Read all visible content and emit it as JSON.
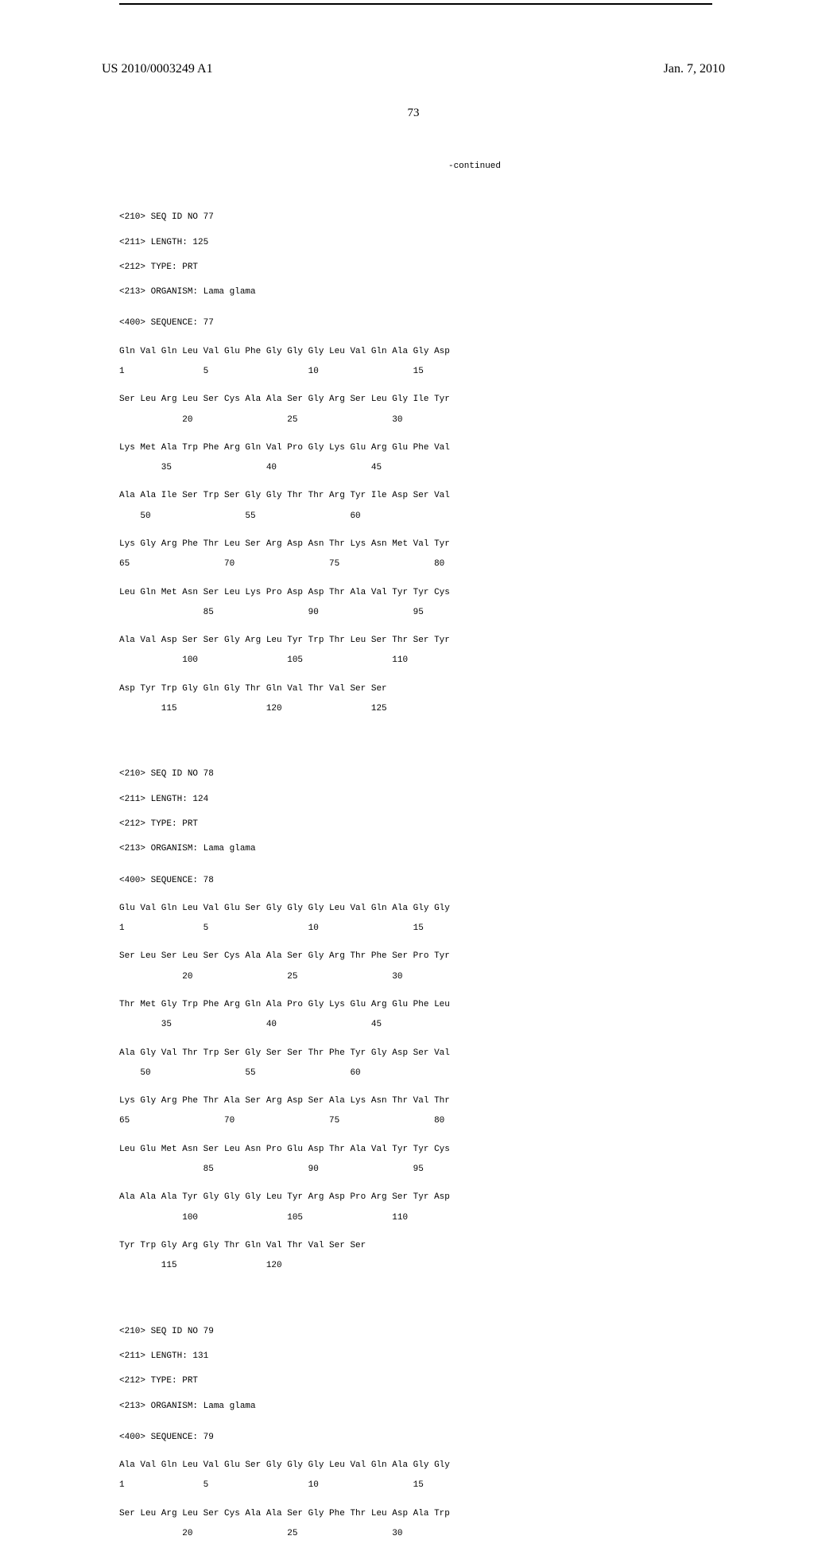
{
  "header": {
    "pub_number": "US 2010/0003249 A1",
    "pub_date": "Jan. 7, 2010",
    "page_number": "73",
    "continued": "-continued"
  },
  "seq77": {
    "headers": [
      "<210> SEQ ID NO 77",
      "<211> LENGTH: 125",
      "<212> TYPE: PRT",
      "<213> ORGANISM: Lama glama"
    ],
    "marker": "<400> SEQUENCE: 77",
    "lines": [
      {
        "res": "Gln Val Gln Leu Val Glu Phe Gly Gly Gly Leu Val Gln Ala Gly Asp",
        "pos": "1               5                   10                  15"
      },
      {
        "res": "Ser Leu Arg Leu Ser Cys Ala Ala Ser Gly Arg Ser Leu Gly Ile Tyr",
        "pos": "            20                  25                  30"
      },
      {
        "res": "Lys Met Ala Trp Phe Arg Gln Val Pro Gly Lys Glu Arg Glu Phe Val",
        "pos": "        35                  40                  45"
      },
      {
        "res": "Ala Ala Ile Ser Trp Ser Gly Gly Thr Thr Arg Tyr Ile Asp Ser Val",
        "pos": "    50                  55                  60"
      },
      {
        "res": "Lys Gly Arg Phe Thr Leu Ser Arg Asp Asn Thr Lys Asn Met Val Tyr",
        "pos": "65                  70                  75                  80"
      },
      {
        "res": "Leu Gln Met Asn Ser Leu Lys Pro Asp Asp Thr Ala Val Tyr Tyr Cys",
        "pos": "                85                  90                  95"
      },
      {
        "res": "Ala Val Asp Ser Ser Gly Arg Leu Tyr Trp Thr Leu Ser Thr Ser Tyr",
        "pos": "            100                 105                 110"
      },
      {
        "res": "Asp Tyr Trp Gly Gln Gly Thr Gln Val Thr Val Ser Ser",
        "pos": "        115                 120                 125"
      }
    ]
  },
  "seq78": {
    "headers": [
      "<210> SEQ ID NO 78",
      "<211> LENGTH: 124",
      "<212> TYPE: PRT",
      "<213> ORGANISM: Lama glama"
    ],
    "marker": "<400> SEQUENCE: 78",
    "lines": [
      {
        "res": "Glu Val Gln Leu Val Glu Ser Gly Gly Gly Leu Val Gln Ala Gly Gly",
        "pos": "1               5                   10                  15"
      },
      {
        "res": "Ser Leu Ser Leu Ser Cys Ala Ala Ser Gly Arg Thr Phe Ser Pro Tyr",
        "pos": "            20                  25                  30"
      },
      {
        "res": "Thr Met Gly Trp Phe Arg Gln Ala Pro Gly Lys Glu Arg Glu Phe Leu",
        "pos": "        35                  40                  45"
      },
      {
        "res": "Ala Gly Val Thr Trp Ser Gly Ser Ser Thr Phe Tyr Gly Asp Ser Val",
        "pos": "    50                  55                  60"
      },
      {
        "res": "Lys Gly Arg Phe Thr Ala Ser Arg Asp Ser Ala Lys Asn Thr Val Thr",
        "pos": "65                  70                  75                  80"
      },
      {
        "res": "Leu Glu Met Asn Ser Leu Asn Pro Glu Asp Thr Ala Val Tyr Tyr Cys",
        "pos": "                85                  90                  95"
      },
      {
        "res": "Ala Ala Ala Tyr Gly Gly Gly Leu Tyr Arg Asp Pro Arg Ser Tyr Asp",
        "pos": "            100                 105                 110"
      },
      {
        "res": "Tyr Trp Gly Arg Gly Thr Gln Val Thr Val Ser Ser",
        "pos": "        115                 120"
      }
    ]
  },
  "seq79": {
    "headers": [
      "<210> SEQ ID NO 79",
      "<211> LENGTH: 131",
      "<212> TYPE: PRT",
      "<213> ORGANISM: Lama glama"
    ],
    "marker": "<400> SEQUENCE: 79",
    "lines": [
      {
        "res": "Ala Val Gln Leu Val Glu Ser Gly Gly Gly Leu Val Gln Ala Gly Gly",
        "pos": "1               5                   10                  15"
      },
      {
        "res": "Ser Leu Arg Leu Ser Cys Ala Ala Ser Gly Phe Thr Leu Asp Ala Trp",
        "pos": "            20                  25                  30"
      }
    ]
  }
}
